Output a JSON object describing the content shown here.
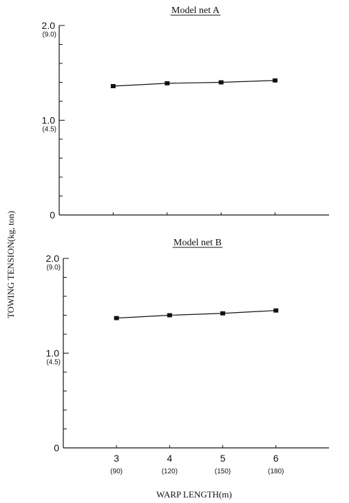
{
  "colors": {
    "ink": "#111111",
    "background": "#ffffff"
  },
  "figure": {
    "ylabel": "TOWING TENSION(kg, ton)",
    "xlabel": "WARP LENGTH(m)"
  },
  "chart_data": [
    {
      "type": "line",
      "title": "Model net A",
      "xlim": [
        2,
        7
      ],
      "ylim": [
        0,
        2.0
      ],
      "yticks": [
        {
          "value": 2.0,
          "label": "2.0",
          "sublabel": "(9.0)"
        },
        {
          "value": 1.0,
          "label": "1.0",
          "sublabel": "(4.5)"
        },
        {
          "value": 0,
          "label": "0",
          "sublabel": ""
        }
      ],
      "xticks": [],
      "series": [
        {
          "x": [
            3,
            4,
            5,
            6
          ],
          "y": [
            1.36,
            1.39,
            1.4,
            1.42
          ]
        }
      ]
    },
    {
      "type": "line",
      "title": "Model net B",
      "xlim": [
        2,
        7
      ],
      "ylim": [
        0,
        2.0
      ],
      "yticks": [
        {
          "value": 2.0,
          "label": "2.0",
          "sublabel": "(9.0)"
        },
        {
          "value": 1.0,
          "label": "1.0",
          "sublabel": "(4.5)"
        },
        {
          "value": 0,
          "label": "0",
          "sublabel": ""
        }
      ],
      "xticks": [
        {
          "value": 3,
          "label": "3",
          "sublabel": "(90)"
        },
        {
          "value": 4,
          "label": "4",
          "sublabel": "(120)"
        },
        {
          "value": 5,
          "label": "5",
          "sublabel": "(150)"
        },
        {
          "value": 6,
          "label": "6",
          "sublabel": "(180)"
        }
      ],
      "series": [
        {
          "x": [
            3,
            4,
            5,
            6
          ],
          "y": [
            1.37,
            1.4,
            1.42,
            1.45
          ]
        }
      ]
    }
  ]
}
